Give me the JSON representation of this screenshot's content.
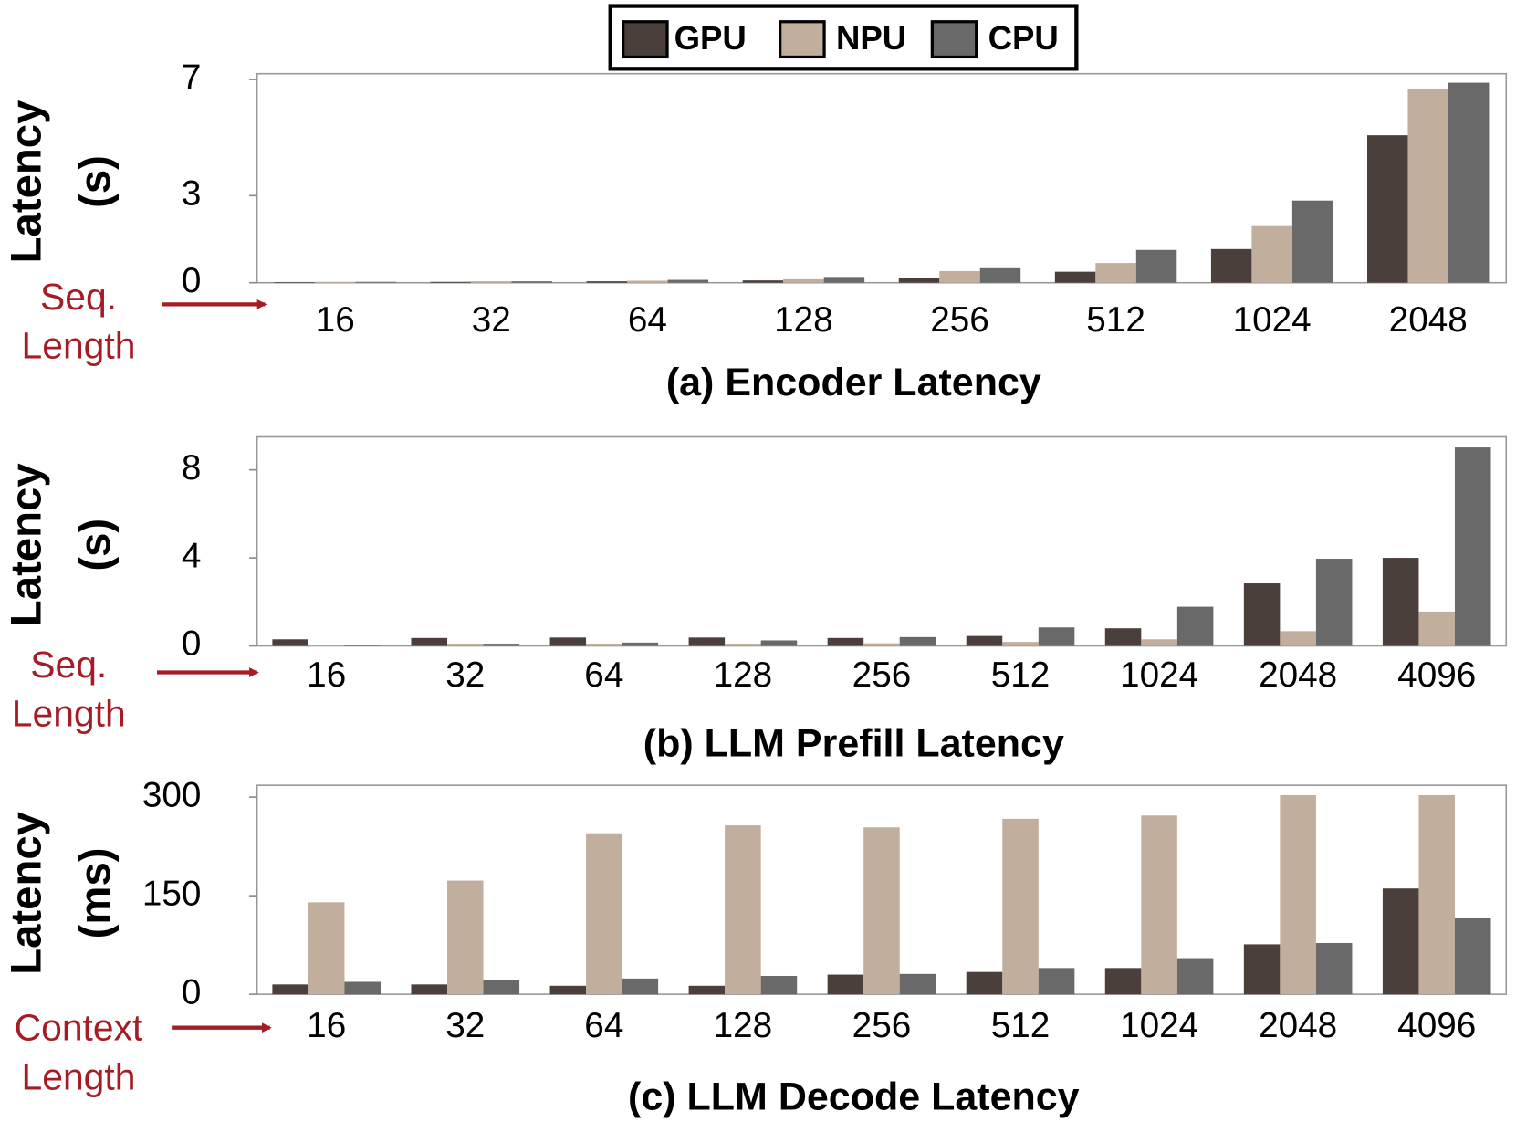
{
  "legend": [
    "GPU",
    "NPU",
    "CPU"
  ],
  "chart_data": [
    {
      "type": "bar",
      "title": "(a) Encoder Latency",
      "ylabel": [
        "Latency",
        "(s)"
      ],
      "annotation": [
        "Seq.",
        "Length"
      ],
      "categories": [
        "16",
        "32",
        "64",
        "128",
        "256",
        "512",
        "1024",
        "2048"
      ],
      "series": [
        {
          "name": "GPU",
          "color": "#4b3f3b",
          "values": [
            0.02,
            0.03,
            0.05,
            0.08,
            0.15,
            0.38,
            1.16,
            5.08
          ]
        },
        {
          "name": "NPU",
          "color": "#c1ae9c",
          "values": [
            0.03,
            0.05,
            0.07,
            0.12,
            0.4,
            0.68,
            1.95,
            6.69
          ]
        },
        {
          "name": "CPU",
          "color": "#696969",
          "values": [
            0.03,
            0.05,
            0.1,
            0.2,
            0.5,
            1.13,
            2.83,
            6.89
          ]
        }
      ],
      "ylim": [
        0,
        7.2
      ],
      "yticks": [
        0,
        3,
        7
      ]
    },
    {
      "type": "bar",
      "title": "(b) LLM Prefill Latency",
      "ylabel": [
        "Latency",
        "(s)"
      ],
      "annotation": [
        "Seq.",
        "Length"
      ],
      "categories": [
        "16",
        "32",
        "64",
        "128",
        "256",
        "512",
        "1024",
        "2048",
        "4096"
      ],
      "series": [
        {
          "name": "GPU",
          "color": "#4b3f3b",
          "values": [
            0.3,
            0.36,
            0.38,
            0.38,
            0.36,
            0.45,
            0.8,
            2.84,
            4.0
          ]
        },
        {
          "name": "NPU",
          "color": "#c1ae9c",
          "values": [
            0.05,
            0.1,
            0.1,
            0.1,
            0.12,
            0.18,
            0.3,
            0.67,
            1.56
          ]
        },
        {
          "name": "CPU",
          "color": "#696969",
          "values": [
            0.05,
            0.1,
            0.15,
            0.25,
            0.4,
            0.84,
            1.78,
            3.96,
            9.02
          ]
        }
      ],
      "ylim": [
        0,
        9.5
      ],
      "yticks": [
        0,
        4,
        8
      ]
    },
    {
      "type": "bar",
      "title": "(c) LLM Decode Latency",
      "ylabel": [
        "Latency",
        "(ms)"
      ],
      "annotation": [
        "Context",
        "Length"
      ],
      "categories": [
        "16",
        "32",
        "64",
        "128",
        "256",
        "512",
        "1024",
        "2048",
        "4096"
      ],
      "series": [
        {
          "name": "GPU",
          "color": "#4b3f3b",
          "values": [
            15,
            15,
            13,
            13,
            30,
            34,
            40,
            76,
            161
          ]
        },
        {
          "name": "NPU",
          "color": "#c1ae9c",
          "values": [
            140,
            173,
            245,
            257,
            254,
            267,
            272,
            303,
            303
          ]
        },
        {
          "name": "CPU",
          "color": "#696969",
          "values": [
            19,
            22,
            24,
            28,
            31,
            40,
            55,
            78,
            116
          ]
        }
      ],
      "ylim": [
        0,
        318
      ],
      "yticks": [
        0,
        150,
        300
      ]
    }
  ]
}
